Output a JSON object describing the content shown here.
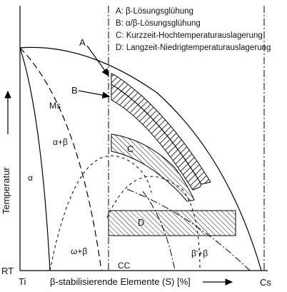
{
  "legend": [
    "A: β-Lösungsglühung",
    "B: α/β-Lösungsglühung",
    "C: Kurzzeit-Hochtemperaturauslagerung",
    "D: Langzeit-Niedrigtemperaturauslagerung"
  ],
  "markers": {
    "A": "A",
    "B": "B",
    "C": "C",
    "D": "D"
  },
  "phases": {
    "ms": "Ms",
    "alpha_beta": "α+β",
    "alpha": "α",
    "omega_beta": "ω+β",
    "beta_prime_beta": "β'+β"
  },
  "axis": {
    "ylabel": "Temperatur",
    "xlabel": "β-stabilisierende Elemente (S) [%]",
    "origin_y": "RT",
    "origin_x": "Ti",
    "cc": "CC",
    "cs": "Cs"
  }
}
